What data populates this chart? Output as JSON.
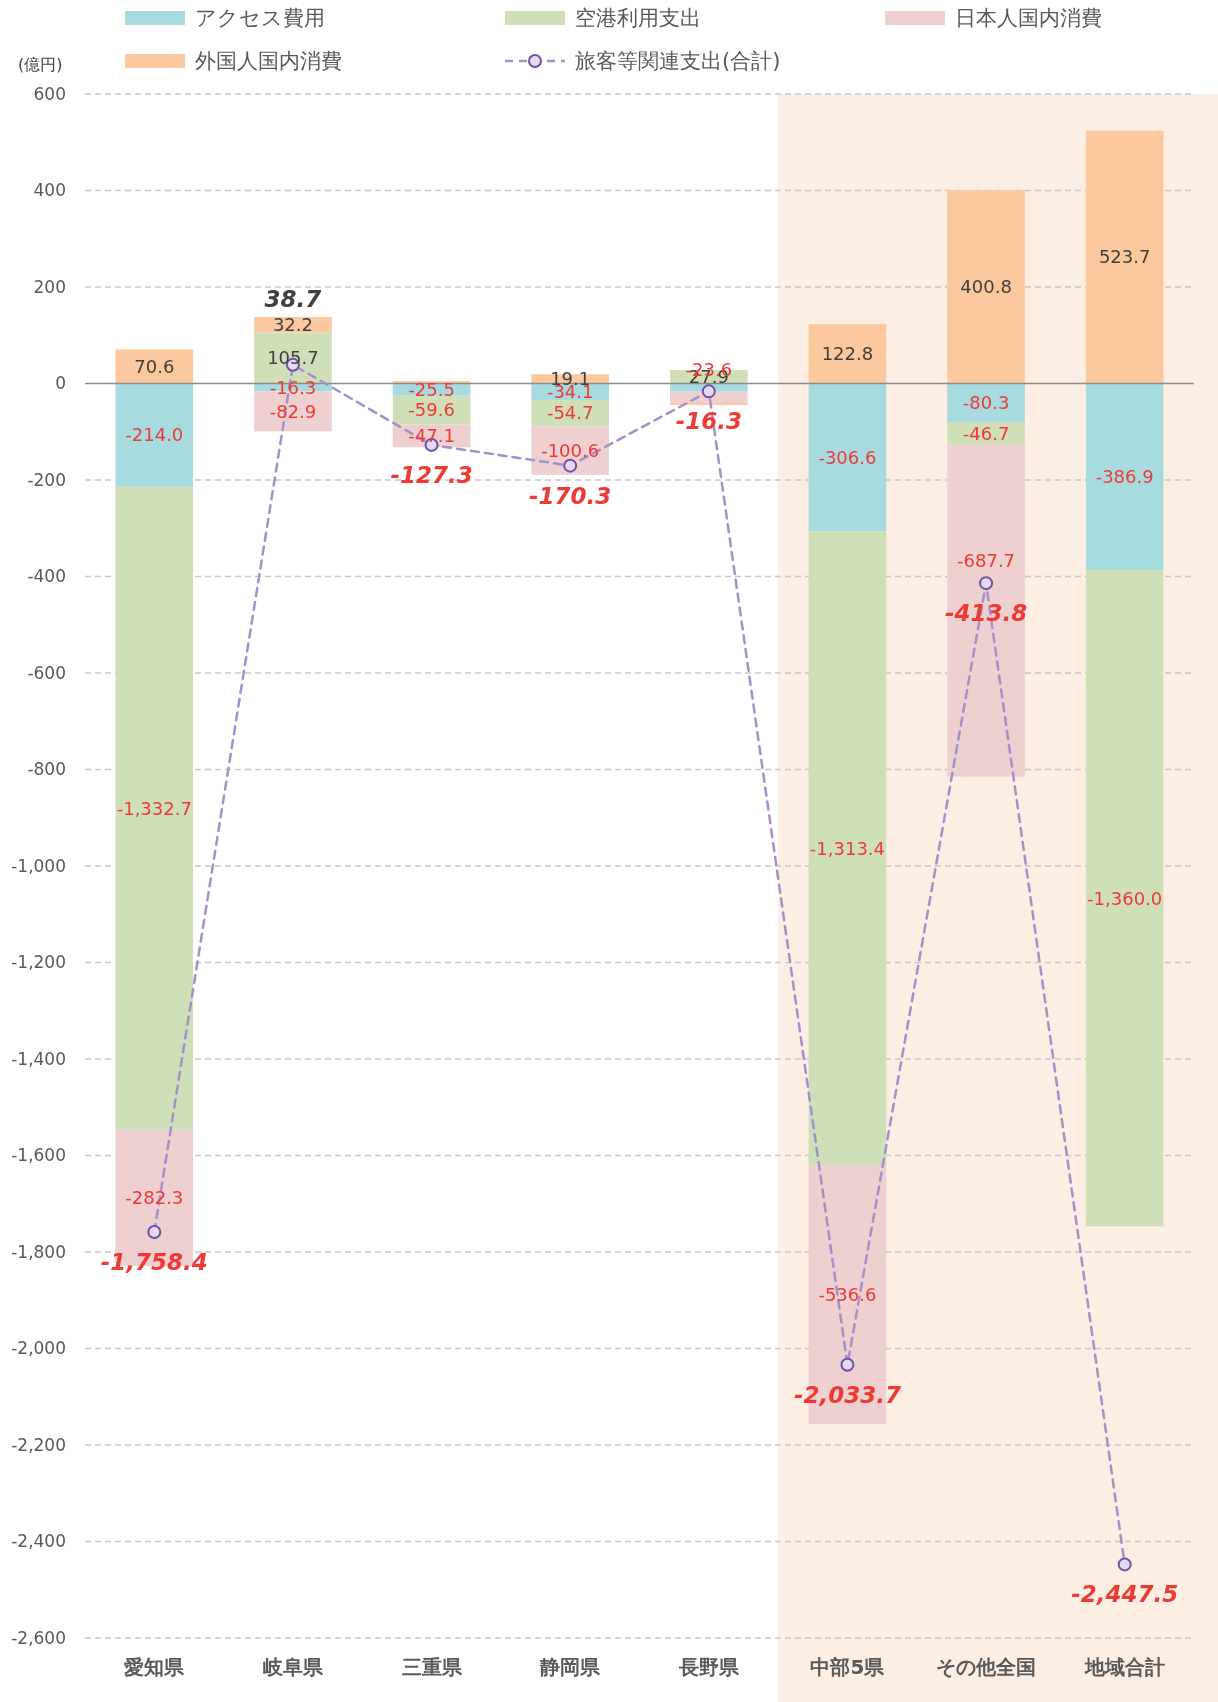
{
  "chart_data": {
    "type": "bar",
    "stacked": true,
    "ylabel": "(億円)",
    "categories": [
      "愛知県",
      "岐阜県",
      "三重県",
      "静岡県",
      "長野県",
      "中部5県",
      "その他全国",
      "地域合計"
    ],
    "series": [
      {
        "name": "アクセス費用",
        "color": "#a8dbe0",
        "values": [
          -214.0,
          -16.3,
          -25.5,
          -34.1,
          -17,
          -306.6,
          -80.3,
          -386.9
        ],
        "value_labels": [
          "-214.0",
          "-16.3",
          "-25.5",
          "-34.1",
          null,
          "-306.6",
          "-80.3",
          "-386.9"
        ]
      },
      {
        "name": "空港利用支出",
        "color": "#cfe0b8",
        "values": [
          -1332.7,
          105.7,
          -59.6,
          -54.7,
          27.9,
          -1313.4,
          -46.7,
          -1360.0
        ],
        "value_labels": [
          "-1,332.7",
          "105.7",
          "-59.6",
          "-54.7",
          "27.9",
          "-1,313.4",
          "-46.7",
          "-1,360.0"
        ]
      },
      {
        "name": "日本人国内消費",
        "color": "#edd0cf",
        "values": [
          -282.3,
          -82.9,
          -47.1,
          -100.6,
          -23.6,
          -536.6,
          -687.7,
          null
        ],
        "value_labels": [
          "-282.3",
          "-82.9",
          "-47.1",
          "-100.6",
          "-23.6",
          "-536.6",
          "-687.7",
          null
        ]
      },
      {
        "name": "外国人国内消費",
        "color": "#fcc89e",
        "values": [
          70.6,
          32.2,
          5,
          19.1,
          -4,
          122.8,
          400.8,
          523.7
        ],
        "value_labels": [
          "70.6",
          "32.2",
          null,
          "19.1",
          null,
          "122.8",
          "400.8",
          "523.7"
        ]
      },
      {
        "name": "旅客等関連支出(合計)",
        "type": "line",
        "color": "#a68fcc",
        "marker": "circle",
        "line_style": "dashed",
        "values": [
          -1758.4,
          38.7,
          -127.3,
          -170.3,
          -16.3,
          -2033.7,
          -413.8,
          -2447.5
        ],
        "value_labels": [
          "-1,758.4",
          "38.7",
          "-127.3",
          "-170.3",
          "-16.3",
          "-2,033.7",
          "-413.8",
          "-2,447.5"
        ]
      }
    ],
    "ylim": [
      -2600,
      600
    ],
    "yticks": [
      600,
      400,
      200,
      0,
      -200,
      -400,
      -600,
      -800,
      {
        "value": -1000,
        "label": "-1,000"
      },
      {
        "value": -1200,
        "label": "-1,200"
      },
      {
        "value": -1400,
        "label": "-1,400"
      },
      {
        "value": -1600,
        "label": "-1,600"
      },
      {
        "value": -1800,
        "label": "-1,800"
      },
      {
        "value": -2000,
        "label": "-2,000"
      },
      {
        "value": -2200,
        "label": "-2,200"
      },
      {
        "value": -2400,
        "label": "-2,400"
      },
      {
        "value": -2600,
        "label": "-2,600"
      }
    ],
    "grid": "y",
    "legend": "top",
    "bands": [
      {
        "axis": "x",
        "from": "中部5県",
        "to": "地域合計",
        "color": "#fdeee3"
      }
    ]
  }
}
